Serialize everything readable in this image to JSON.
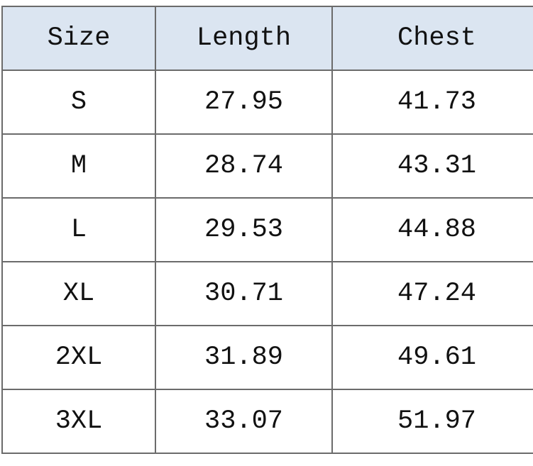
{
  "table": {
    "header": [
      "Size",
      "Length",
      "Chest"
    ],
    "rows": [
      [
        "S",
        "27.95",
        "41.73"
      ],
      [
        "M",
        "28.74",
        "43.31"
      ],
      [
        "L",
        "29.53",
        "44.88"
      ],
      [
        "XL",
        "30.71",
        "47.24"
      ],
      [
        "2XL",
        "31.89",
        "49.61"
      ],
      [
        "3XL",
        "33.07",
        "51.97"
      ]
    ]
  }
}
